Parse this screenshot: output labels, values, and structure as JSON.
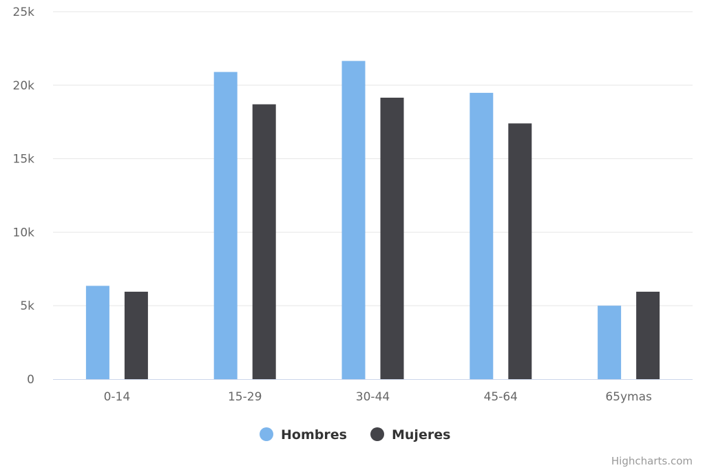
{
  "chart_data": {
    "type": "bar",
    "title": "",
    "xlabel": "",
    "ylabel": "",
    "categories": [
      "0-14",
      "15-29",
      "30-44",
      "45-64",
      "65ymas"
    ],
    "series": [
      {
        "name": "Hombres",
        "color": "#7cb5ec",
        "values": [
          6350,
          20900,
          21650,
          19480,
          5000
        ]
      },
      {
        "name": "Mujeres",
        "color": "#434348",
        "values": [
          5950,
          18700,
          19150,
          17400,
          5950
        ]
      }
    ],
    "ylim": [
      0,
      25000
    ],
    "yticks": [
      0,
      5000,
      10000,
      15000,
      20000,
      25000
    ],
    "ytick_labels": [
      "0",
      "5k",
      "10k",
      "15k",
      "20k",
      "25k"
    ],
    "grid": true,
    "legend_position": "bottom-center"
  },
  "credits": "Highcharts.com"
}
